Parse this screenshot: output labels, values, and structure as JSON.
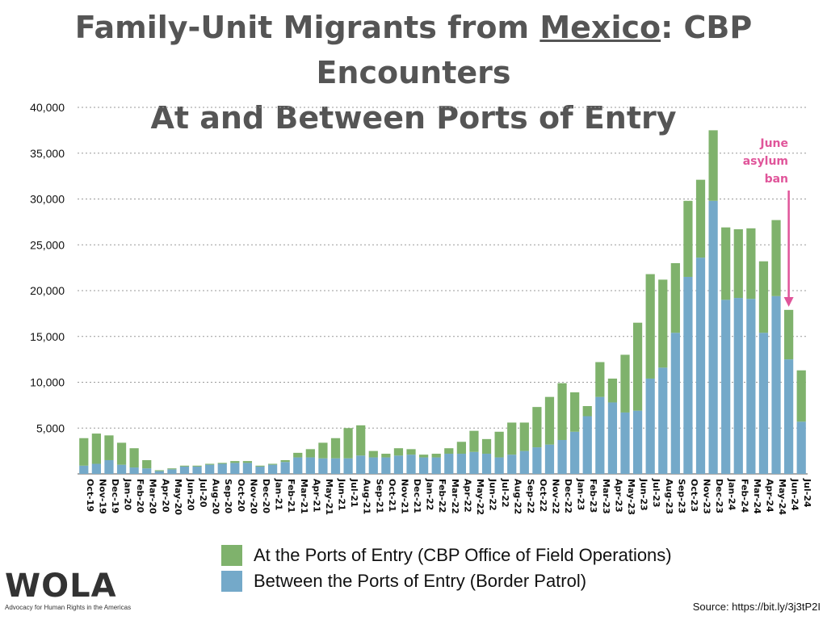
{
  "title": {
    "line1_prefix": "Family-Unit Migrants from ",
    "line1_underlined": "Mexico",
    "line1_suffix": ": CBP Encounters",
    "line2": "At and Between Ports of Entry"
  },
  "legend": {
    "ofo": "At the Ports of Entry (CBP Office of Field Operations)",
    "bp": "Between the Ports of Entry (Border Patrol)"
  },
  "colors": {
    "ofo": "#7fb26c",
    "bp": "#74a9c9",
    "annotation": "#e0559a",
    "grid": "#999999"
  },
  "annotation": {
    "lines": [
      "June",
      "asylum",
      "ban"
    ]
  },
  "logo": {
    "name": "WOLA",
    "tagline": "Advocacy for Human Rights in the Americas"
  },
  "source": "Source: https://bit.ly/3j3tP2I",
  "chart_data": {
    "type": "bar",
    "stacked": true,
    "ylim": [
      0,
      40000
    ],
    "yticks": [
      "5,000",
      "10,000",
      "15,000",
      "20,000",
      "25,000",
      "30,000",
      "35,000",
      "40,000"
    ],
    "ytick_values": [
      5000,
      10000,
      15000,
      20000,
      25000,
      30000,
      35000,
      40000
    ],
    "grid": true,
    "legend_position": "bottom",
    "categories": [
      "Oct-19",
      "Nov-19",
      "Dec-19",
      "Jan-20",
      "Feb-20",
      "Mar-20",
      "Apr-20",
      "May-20",
      "Jun-20",
      "Jul-20",
      "Aug-20",
      "Sep-20",
      "Oct-20",
      "Nov-20",
      "Dec-20",
      "Jan-21",
      "Feb-21",
      "Mar-21",
      "Apr-21",
      "May-21",
      "Jun-21",
      "Jul-21",
      "Aug-21",
      "Sep-21",
      "Oct-21",
      "Nov-21",
      "Dec-21",
      "Jan-22",
      "Feb-22",
      "Mar-22",
      "Apr-22",
      "May-22",
      "Jun-22",
      "Jul-22",
      "Aug-22",
      "Sep-22",
      "Oct-22",
      "Nov-22",
      "Dec-22",
      "Jan-23",
      "Feb-23",
      "Mar-23",
      "Apr-23",
      "May-23",
      "Jun-23",
      "Jul-23",
      "Aug-23",
      "Sep-23",
      "Oct-23",
      "Nov-23",
      "Dec-23",
      "Jan-24",
      "Feb-24",
      "Mar-24",
      "Apr-24",
      "May-24",
      "Jun-24",
      "Jul-24"
    ],
    "series": [
      {
        "name": "Between the Ports of Entry (Border Patrol)",
        "values": [
          900,
          1100,
          1500,
          1000,
          700,
          600,
          300,
          500,
          800,
          800,
          1000,
          1100,
          1200,
          1200,
          800,
          1000,
          1300,
          1800,
          1800,
          1700,
          1700,
          1700,
          2000,
          1800,
          1800,
          2000,
          2100,
          1800,
          1800,
          2200,
          2200,
          2400,
          2200,
          1800,
          2100,
          2500,
          2900,
          3200,
          3700,
          4600,
          6300,
          8400,
          7800,
          6700,
          6900,
          10400,
          11600,
          15400,
          21500,
          23600,
          29800,
          19000,
          19200,
          19100,
          15400,
          19400,
          12500,
          5700
        ]
      },
      {
        "name": "At the Ports of Entry (CBP Office of Field Operations)",
        "values": [
          3000,
          3300,
          2700,
          2400,
          2100,
          900,
          100,
          100,
          100,
          100,
          100,
          100,
          200,
          200,
          100,
          100,
          200,
          500,
          900,
          1700,
          2200,
          3300,
          3300,
          700,
          400,
          800,
          600,
          300,
          400,
          600,
          1300,
          2300,
          1600,
          2800,
          3500,
          3100,
          4400,
          5200,
          6200,
          4300,
          1100,
          3800,
          2600,
          6300,
          9600,
          11400,
          9600,
          7600,
          8300,
          8500,
          7700,
          7900,
          7500,
          7700,
          7800,
          8300,
          5400,
          5600
        ]
      }
    ],
    "annotations": [
      {
        "text": "June asylum ban",
        "x": "Jun-24",
        "type": "arrow"
      }
    ]
  }
}
